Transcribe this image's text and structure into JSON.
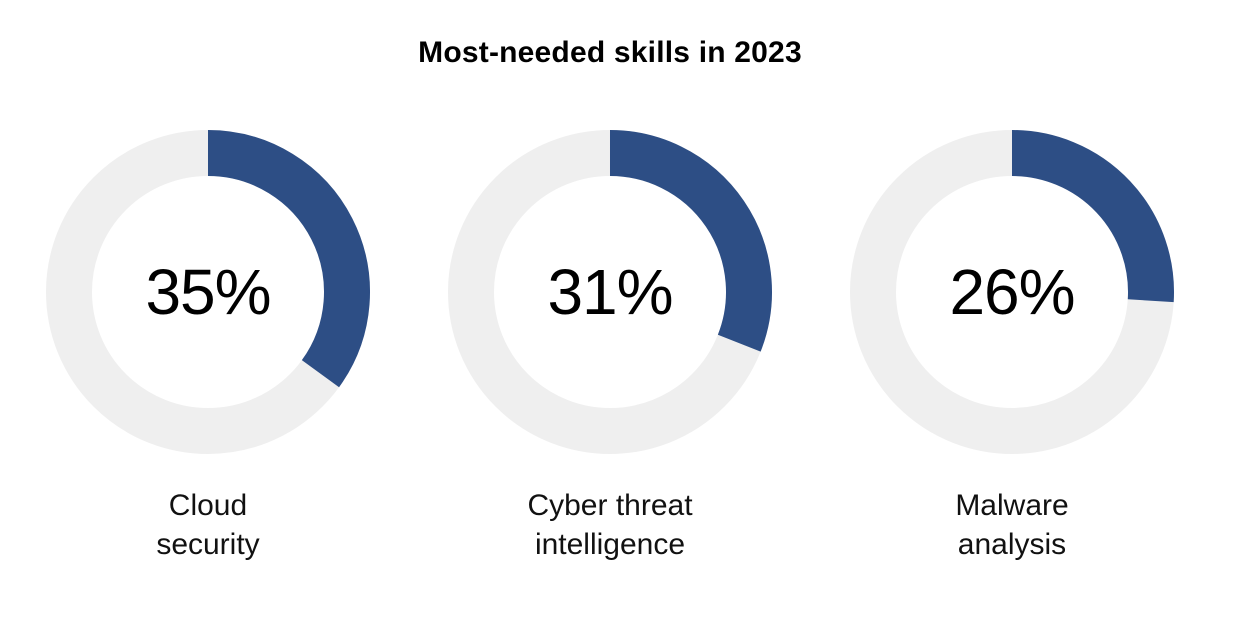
{
  "chart_data": {
    "type": "donut",
    "title": "Most-needed skills in 2023",
    "unit": "%",
    "items": [
      {
        "label_lines": [
          "Cloud",
          "security"
        ],
        "value": 35
      },
      {
        "label_lines": [
          "Cyber threat",
          "intelligence"
        ],
        "value": 31
      },
      {
        "label_lines": [
          "Malware",
          "analysis"
        ],
        "value": 26
      }
    ]
  },
  "colors": {
    "fill": "#2d4e85",
    "track": "#efefef",
    "text": "#000000"
  }
}
